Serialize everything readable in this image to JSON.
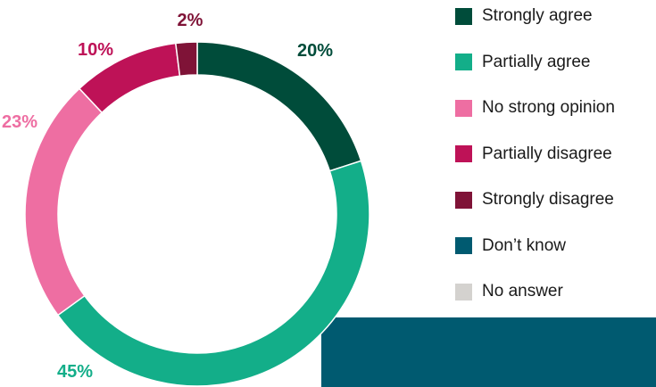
{
  "chart_data": {
    "type": "pie",
    "donut": true,
    "legend_position": "right",
    "series": [
      {
        "name": "Strongly agree",
        "value": 20,
        "label": "20%",
        "color": "#004c3a"
      },
      {
        "name": "Partially agree",
        "value": 45,
        "label": "45%",
        "color": "#13ae89"
      },
      {
        "name": "No strong opinion",
        "value": 23,
        "label": "23%",
        "color": "#ee6ea2"
      },
      {
        "name": "Partially disagree",
        "value": 10,
        "label": "10%",
        "color": "#be1257"
      },
      {
        "name": "Strongly disagree",
        "value": 2,
        "label": "2%",
        "color": "#7f1337"
      },
      {
        "name": "Don’t know",
        "value": 0,
        "label": "",
        "color": "#005a70"
      },
      {
        "name": "No answer",
        "value": 0,
        "label": "",
        "color": "#d4d2cf"
      }
    ]
  },
  "colors": {
    "banner": "#005a70",
    "label_strongly_agree": "#004c3a",
    "label_partially_agree": "#13ae89",
    "label_no_strong_opinion": "#ee6ea2",
    "label_partially_disagree": "#be1257",
    "label_strongly_disagree": "#7f1337"
  }
}
